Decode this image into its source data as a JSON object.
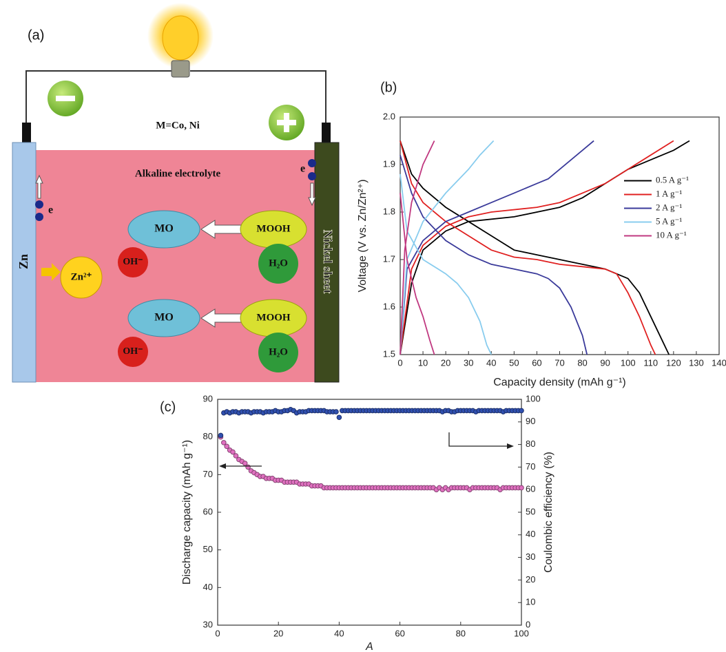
{
  "diagram": {
    "panel": "(a)",
    "formula": "M=Co, Ni",
    "electrolyte": "Alkaline electrolyte",
    "anode": "Zn",
    "cathode": "Nickel sheet",
    "electrons": [
      "e",
      "e"
    ],
    "zinc_ion": "Zn²⁺",
    "reactions": [
      {
        "product": "MO",
        "ion": "OH⁻",
        "reactant": "MOOH",
        "water": "H₂O"
      },
      {
        "product": "MO",
        "ion": "OH⁻",
        "reactant": "MOOH",
        "water": "H₂O"
      }
    ]
  },
  "chart_data": [
    {
      "type": "line",
      "panel": "(b)",
      "xlabel": "Capacity density (mAh g⁻¹)",
      "ylabel": "Voltage (V vs. Zn/Zn²⁺)",
      "xlim": [
        0,
        140
      ],
      "xticks": [
        0,
        10,
        20,
        30,
        40,
        50,
        60,
        70,
        80,
        90,
        100,
        110,
        120,
        130,
        140
      ],
      "ylim": [
        1.5,
        2.0
      ],
      "yticks": [
        1.5,
        1.6,
        1.7,
        1.8,
        1.9,
        {
          "value": 2.0,
          "label": "2.0"
        }
      ],
      "grid": false,
      "legend": "right",
      "series": [
        {
          "name": "0.5 A g⁻¹",
          "color": "#000000",
          "x": [
            0,
            5,
            10,
            20,
            30,
            50,
            70,
            80,
            90,
            100,
            110,
            120,
            127,
            null,
            0,
            5,
            10,
            20,
            30,
            40,
            50,
            60,
            70,
            80,
            90,
            100,
            105,
            110,
            115,
            118
          ],
          "values": [
            1.5,
            1.65,
            1.72,
            1.76,
            1.78,
            1.79,
            1.81,
            1.83,
            1.86,
            1.89,
            1.91,
            1.93,
            1.95,
            null,
            1.95,
            1.88,
            1.85,
            1.81,
            1.78,
            1.75,
            1.72,
            1.71,
            1.7,
            1.69,
            1.68,
            1.66,
            1.63,
            1.58,
            1.53,
            1.5
          ]
        },
        {
          "name": "1 A g⁻¹",
          "color": "#e02020",
          "x": [
            0,
            5,
            10,
            20,
            30,
            40,
            60,
            70,
            80,
            90,
            100,
            110,
            120,
            null,
            0,
            5,
            10,
            20,
            30,
            40,
            50,
            60,
            70,
            80,
            90,
            95,
            100,
            105,
            110,
            112
          ],
          "values": [
            1.5,
            1.68,
            1.73,
            1.77,
            1.79,
            1.8,
            1.81,
            1.82,
            1.84,
            1.86,
            1.89,
            1.92,
            1.95,
            null,
            1.95,
            1.86,
            1.82,
            1.78,
            1.75,
            1.72,
            1.705,
            1.7,
            1.69,
            1.685,
            1.68,
            1.67,
            1.63,
            1.58,
            1.52,
            1.5
          ]
        },
        {
          "name": "2 A g⁻¹",
          "color": "#3a3a9a",
          "x": [
            0,
            3,
            10,
            20,
            30,
            40,
            50,
            60,
            65,
            70,
            80,
            85,
            null,
            0,
            5,
            10,
            20,
            30,
            40,
            50,
            60,
            65,
            70,
            75,
            80,
            82
          ],
          "values": [
            1.5,
            1.68,
            1.74,
            1.78,
            1.8,
            1.82,
            1.84,
            1.86,
            1.87,
            1.89,
            1.93,
            1.95,
            null,
            1.92,
            1.84,
            1.79,
            1.74,
            1.71,
            1.69,
            1.68,
            1.67,
            1.66,
            1.64,
            1.6,
            1.54,
            1.5
          ]
        },
        {
          "name": "5 A g⁻¹",
          "color": "#88ccee",
          "x": [
            0,
            3,
            10,
            20,
            30,
            35,
            41,
            null,
            0,
            3,
            10,
            20,
            25,
            30,
            35,
            38,
            40
          ],
          "values": [
            1.5,
            1.7,
            1.78,
            1.84,
            1.89,
            1.92,
            1.95,
            null,
            1.88,
            1.76,
            1.7,
            1.67,
            1.65,
            1.62,
            1.57,
            1.52,
            1.5
          ]
        },
        {
          "name": "10 A g⁻¹",
          "color": "#c03880",
          "x": [
            0,
            2,
            5,
            10,
            15,
            null,
            0,
            3,
            7,
            10,
            13,
            15
          ],
          "values": [
            1.5,
            1.72,
            1.82,
            1.9,
            1.95,
            null,
            1.84,
            1.7,
            1.62,
            1.58,
            1.53,
            1.5
          ]
        }
      ]
    },
    {
      "type": "scatter",
      "panel": "(c)",
      "xlabel": "A",
      "ylabel": "Discharge capacity (mAh g⁻¹)",
      "y2label": "Coulombic efficiency (%)",
      "xlim": [
        0,
        100
      ],
      "xticks": [
        0,
        20,
        40,
        60,
        80,
        100
      ],
      "ylim": [
        30,
        90
      ],
      "yticks": [
        30,
        40,
        50,
        60,
        70,
        80,
        90
      ],
      "y2lim": [
        0,
        100
      ],
      "y2ticks": [
        0,
        10,
        20,
        30,
        40,
        50,
        60,
        70,
        80,
        90,
        100
      ],
      "grid": false,
      "x": [
        1,
        2,
        3,
        4,
        5,
        6,
        7,
        8,
        9,
        10,
        11,
        12,
        13,
        14,
        15,
        16,
        17,
        18,
        19,
        20,
        21,
        22,
        23,
        24,
        25,
        26,
        27,
        28,
        29,
        30,
        31,
        32,
        33,
        34,
        35,
        36,
        37,
        38,
        39,
        40,
        41,
        42,
        43,
        44,
        45,
        46,
        47,
        48,
        49,
        50,
        51,
        52,
        53,
        54,
        55,
        56,
        57,
        58,
        59,
        60,
        61,
        62,
        63,
        64,
        65,
        66,
        67,
        68,
        69,
        70,
        71,
        72,
        73,
        74,
        75,
        76,
        77,
        78,
        79,
        80,
        81,
        82,
        83,
        84,
        85,
        86,
        87,
        88,
        89,
        90,
        91,
        92,
        93,
        94,
        95,
        96,
        97,
        98,
        99,
        100
      ],
      "series": [
        {
          "color": "#e070c0",
          "axis": "y",
          "values": [
            80,
            78.5,
            77.5,
            76.5,
            76,
            75,
            74,
            73.5,
            73,
            72,
            71,
            70.5,
            70,
            69.5,
            69.5,
            69,
            69,
            69,
            68.5,
            68.5,
            68.5,
            68,
            68,
            68,
            68,
            68,
            67.5,
            67.5,
            67.5,
            67.5,
            67,
            67,
            67,
            67,
            66.5,
            66.5,
            66.5,
            66.5,
            66.5,
            66.5,
            66.5,
            66.5,
            66.5,
            66.5,
            66.5,
            66.5,
            66.5,
            66.5,
            66.5,
            66.5,
            66.5,
            66.5,
            66.5,
            66.5,
            66.5,
            66.5,
            66.5,
            66.5,
            66.5,
            66.5,
            66.5,
            66.5,
            66.5,
            66.5,
            66.5,
            66.5,
            66.5,
            66.5,
            66.5,
            66.5,
            66.5,
            66,
            66.5,
            66,
            66.5,
            66,
            66.5,
            66.5,
            66.5,
            66.5,
            66.5,
            66.5,
            66,
            66.5,
            66.5,
            66.5,
            66.5,
            66.5,
            66.5,
            66.5,
            66.5,
            66.5,
            66,
            66.5,
            66.5,
            66.5,
            66.5,
            66.5,
            66.5,
            66.5
          ]
        },
        {
          "color": "#3050b0",
          "axis": "y2",
          "values": [
            84,
            94,
            94.5,
            94,
            94.5,
            94.5,
            94,
            94.5,
            94.5,
            94.5,
            94,
            94.5,
            94.5,
            94.5,
            94,
            94.5,
            94.5,
            94.5,
            95,
            94.5,
            94.5,
            95,
            95,
            95.5,
            95,
            94,
            94.5,
            94.5,
            94.5,
            95,
            95,
            95,
            95,
            95,
            95,
            94.5,
            94.5,
            94.5,
            94.5,
            92,
            95,
            95,
            95,
            95,
            95,
            95,
            95,
            95,
            95,
            95,
            95,
            95,
            95,
            95,
            95,
            95,
            95,
            95,
            95,
            95,
            95,
            95,
            95,
            95,
            95,
            95,
            95,
            95,
            95,
            95,
            95,
            95,
            95,
            94.5,
            95,
            95,
            94.5,
            94.5,
            95,
            95,
            95,
            95,
            95,
            95,
            94.5,
            95,
            95,
            95,
            95,
            95,
            95,
            95,
            95,
            94.5,
            95,
            95,
            95,
            95,
            95,
            95
          ]
        }
      ]
    }
  ]
}
